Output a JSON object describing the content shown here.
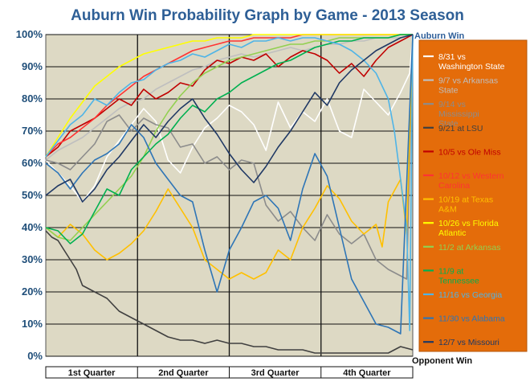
{
  "chart_data": {
    "type": "line",
    "title": "Auburn Win Probability Graph by Game - 2013 Season",
    "xlabel": "",
    "ylabel": "",
    "ylim": [
      0,
      100
    ],
    "yticks": [
      "0%",
      "10%",
      "20%",
      "30%",
      "40%",
      "50%",
      "60%",
      "70%",
      "80%",
      "90%",
      "100%"
    ],
    "top_label": "Auburn Win",
    "bottom_label": "Opponent Win",
    "quarters": [
      "1st Quarter",
      "2nd Quarter",
      "3rd Quarter",
      "4th Quarter"
    ],
    "x_range": [
      0,
      60
    ],
    "grid": "horizontal and vertical",
    "legend_position": "right",
    "plot_background": "#DDD9C4",
    "legend_background": "#E46C0A",
    "series": [
      {
        "name": "8/31 vs Washington State",
        "color": "#FFFFFF",
        "x": [
          0,
          2,
          4,
          6,
          8,
          10,
          12,
          14,
          16,
          18,
          20,
          22,
          24,
          26,
          28,
          30,
          32,
          34,
          36,
          38,
          40,
          42,
          44,
          46,
          48,
          50,
          52,
          54,
          56,
          58,
          59.5,
          60
        ],
        "values": [
          61,
          57,
          53,
          48,
          53,
          62,
          67,
          72,
          77,
          73,
          61,
          57,
          65,
          71,
          74,
          78,
          76,
          72,
          64,
          79,
          71,
          76,
          73,
          80,
          70,
          68,
          83,
          79,
          75,
          82,
          88,
          100
        ]
      },
      {
        "name": "9/7 vs Arkansas State",
        "color": "#BFBFBF",
        "x": [
          0,
          2,
          4,
          6,
          8,
          10,
          12,
          14,
          16,
          18,
          20,
          22,
          24,
          26,
          28,
          30,
          32,
          34,
          36,
          38,
          40,
          42,
          44,
          46,
          48,
          50,
          52,
          54,
          56,
          58,
          60
        ],
        "values": [
          61,
          64,
          66,
          68,
          71,
          74,
          77,
          79,
          80,
          83,
          85,
          87,
          89,
          90,
          92,
          93,
          94,
          93,
          94,
          95,
          96,
          95,
          96,
          97,
          97,
          98,
          98,
          99,
          99,
          99,
          100
        ]
      },
      {
        "name": "9/14 vs Mississippi State",
        "color": "#8C8C8C",
        "x": [
          0,
          2,
          4,
          6,
          8,
          10,
          12,
          14,
          16,
          18,
          20,
          22,
          24,
          26,
          28,
          30,
          32,
          34,
          36,
          38,
          40,
          42,
          44,
          46,
          48,
          50,
          52,
          54,
          56,
          58,
          59,
          60
        ],
        "values": [
          61,
          60,
          58,
          62,
          66,
          73,
          75,
          70,
          74,
          72,
          71,
          65,
          66,
          60,
          62,
          58,
          61,
          60,
          47,
          42,
          45,
          40,
          36,
          44,
          38,
          35,
          38,
          30,
          27,
          25,
          24,
          100
        ]
      },
      {
        "name": "9/21 at LSU",
        "color": "#404040",
        "x": [
          0,
          1,
          2,
          3,
          4,
          5,
          6,
          8,
          10,
          12,
          14,
          16,
          18,
          20,
          22,
          24,
          26,
          28,
          30,
          32,
          34,
          36,
          38,
          40,
          42,
          44,
          46,
          48,
          50,
          52,
          54,
          56,
          58,
          60
        ],
        "values": [
          39,
          37,
          36,
          33,
          30,
          27,
          22,
          20,
          18,
          14,
          12,
          10,
          8,
          6,
          5,
          5,
          4,
          5,
          4,
          4,
          3,
          3,
          2,
          2,
          2,
          1,
          1,
          1,
          1,
          1,
          1,
          1,
          3,
          2
        ]
      },
      {
        "name": "10/5 vs Ole Miss",
        "color": "#C00000",
        "x": [
          0,
          2,
          4,
          6,
          8,
          10,
          12,
          14,
          16,
          18,
          20,
          22,
          24,
          26,
          28,
          30,
          32,
          34,
          36,
          38,
          40,
          42,
          44,
          46,
          48,
          50,
          52,
          54,
          56,
          58,
          60
        ],
        "values": [
          62,
          65,
          70,
          72,
          74,
          77,
          80,
          78,
          83,
          80,
          82,
          85,
          84,
          89,
          92,
          91,
          93,
          92,
          94,
          90,
          93,
          95,
          94,
          92,
          88,
          91,
          87,
          92,
          96,
          98,
          100
        ]
      },
      {
        "name": "10/12 vs Western Carolina",
        "color": "#FF3333",
        "x": [
          0,
          2,
          4,
          6,
          8,
          10,
          12,
          14,
          16,
          18,
          20,
          22,
          24,
          26,
          28,
          30,
          32,
          34,
          36,
          38,
          40,
          42,
          44,
          46,
          48,
          50,
          52,
          54,
          56,
          58,
          60
        ],
        "values": [
          62,
          66,
          68,
          71,
          74,
          78,
          81,
          84,
          87,
          89,
          91,
          93,
          95,
          96,
          97,
          98,
          98,
          99,
          99,
          99,
          99,
          100,
          100,
          100,
          100,
          100,
          100,
          100,
          100,
          100,
          100
        ]
      },
      {
        "name": "10/19 at Texas A&M",
        "color": "#FFC000",
        "x": [
          0,
          2,
          4,
          6,
          8,
          10,
          12,
          14,
          16,
          18,
          20,
          22,
          24,
          26,
          28,
          30,
          32,
          34,
          36,
          38,
          40,
          42,
          44,
          46,
          48,
          50,
          52,
          54,
          55,
          56,
          58,
          59,
          60
        ],
        "values": [
          40,
          37,
          41,
          38,
          33,
          30,
          32,
          35,
          39,
          45,
          52,
          46,
          40,
          30,
          27,
          24,
          26,
          24,
          26,
          33,
          30,
          40,
          46,
          53,
          49,
          42,
          38,
          41,
          34,
          48,
          55,
          38,
          100
        ]
      },
      {
        "name": "10/26 vs Florida Atlantic",
        "color": "#FFFF00",
        "x": [
          0,
          2,
          4,
          6,
          8,
          10,
          12,
          14,
          16,
          18,
          20,
          22,
          24,
          26,
          28,
          30,
          32,
          34,
          36,
          38,
          40,
          42,
          44,
          46,
          48,
          50,
          52,
          54,
          56,
          58,
          60
        ],
        "values": [
          62,
          68,
          74,
          79,
          84,
          87,
          90,
          92,
          94,
          95,
          96,
          97,
          98,
          98,
          99,
          99,
          99,
          100,
          100,
          100,
          100,
          100,
          100,
          100,
          100,
          100,
          100,
          100,
          100,
          100,
          100
        ]
      },
      {
        "name": "11/2 at Arkansas",
        "color": "#92D050",
        "x": [
          0,
          2,
          4,
          6,
          8,
          10,
          12,
          14,
          16,
          18,
          20,
          22,
          24,
          26,
          28,
          30,
          32,
          34,
          36,
          38,
          40,
          42,
          44,
          46,
          48,
          50,
          52,
          54,
          56,
          58,
          60
        ],
        "values": [
          40,
          37,
          36,
          40,
          44,
          48,
          52,
          56,
          62,
          70,
          76,
          81,
          85,
          88,
          90,
          92,
          93,
          94,
          95,
          96,
          97,
          97,
          98,
          98,
          99,
          99,
          99,
          99,
          99,
          100,
          100
        ]
      },
      {
        "name": "11/9 at Tennessee",
        "color": "#00B050",
        "x": [
          0,
          2,
          4,
          6,
          8,
          10,
          12,
          14,
          16,
          18,
          20,
          22,
          24,
          26,
          28,
          30,
          32,
          34,
          36,
          38,
          40,
          42,
          44,
          46,
          48,
          50,
          52,
          54,
          56,
          58,
          60
        ],
        "values": [
          40,
          39,
          35,
          38,
          45,
          52,
          50,
          58,
          62,
          66,
          69,
          74,
          78,
          76,
          80,
          82,
          85,
          87,
          89,
          91,
          92,
          94,
          96,
          97,
          98,
          98,
          99,
          99,
          99,
          100,
          100
        ]
      },
      {
        "name": "11/16 vs Georgia",
        "color": "#4FB4E7",
        "x": [
          0,
          2,
          4,
          6,
          8,
          10,
          12,
          14,
          16,
          18,
          20,
          22,
          24,
          26,
          28,
          30,
          32,
          34,
          36,
          38,
          40,
          42,
          44,
          46,
          48,
          50,
          52,
          54,
          56,
          57,
          58,
          59,
          59.5,
          60
        ],
        "values": [
          62,
          67,
          72,
          75,
          80,
          78,
          82,
          85,
          86,
          89,
          91,
          92,
          94,
          93,
          95,
          97,
          96,
          98,
          98,
          99,
          98,
          99,
          99,
          98,
          97,
          95,
          92,
          88,
          80,
          70,
          55,
          40,
          8,
          100
        ]
      },
      {
        "name": "11/30 vs Alabama",
        "color": "#2E75B6",
        "x": [
          0,
          2,
          4,
          6,
          8,
          10,
          12,
          14,
          16,
          18,
          20,
          22,
          24,
          26,
          28,
          30,
          32,
          34,
          36,
          38,
          40,
          42,
          44,
          46,
          48,
          50,
          52,
          54,
          56,
          58,
          60
        ],
        "values": [
          60,
          57,
          52,
          57,
          61,
          63,
          66,
          72,
          68,
          60,
          55,
          50,
          48,
          33,
          20,
          33,
          40,
          48,
          50,
          46,
          36,
          52,
          63,
          56,
          40,
          24,
          17,
          10,
          9,
          7,
          100
        ]
      },
      {
        "name": "12/7 vs Missouri",
        "color": "#1F3864",
        "x": [
          0,
          2,
          4,
          6,
          8,
          10,
          12,
          14,
          16,
          18,
          20,
          22,
          24,
          26,
          28,
          30,
          32,
          34,
          36,
          38,
          40,
          42,
          44,
          46,
          48,
          50,
          52,
          54,
          56,
          58,
          60
        ],
        "values": [
          50,
          53,
          55,
          48,
          52,
          58,
          62,
          67,
          72,
          68,
          73,
          77,
          80,
          74,
          69,
          63,
          58,
          54,
          59,
          65,
          70,
          76,
          82,
          78,
          85,
          89,
          92,
          95,
          97,
          99,
          100
        ]
      }
    ]
  }
}
